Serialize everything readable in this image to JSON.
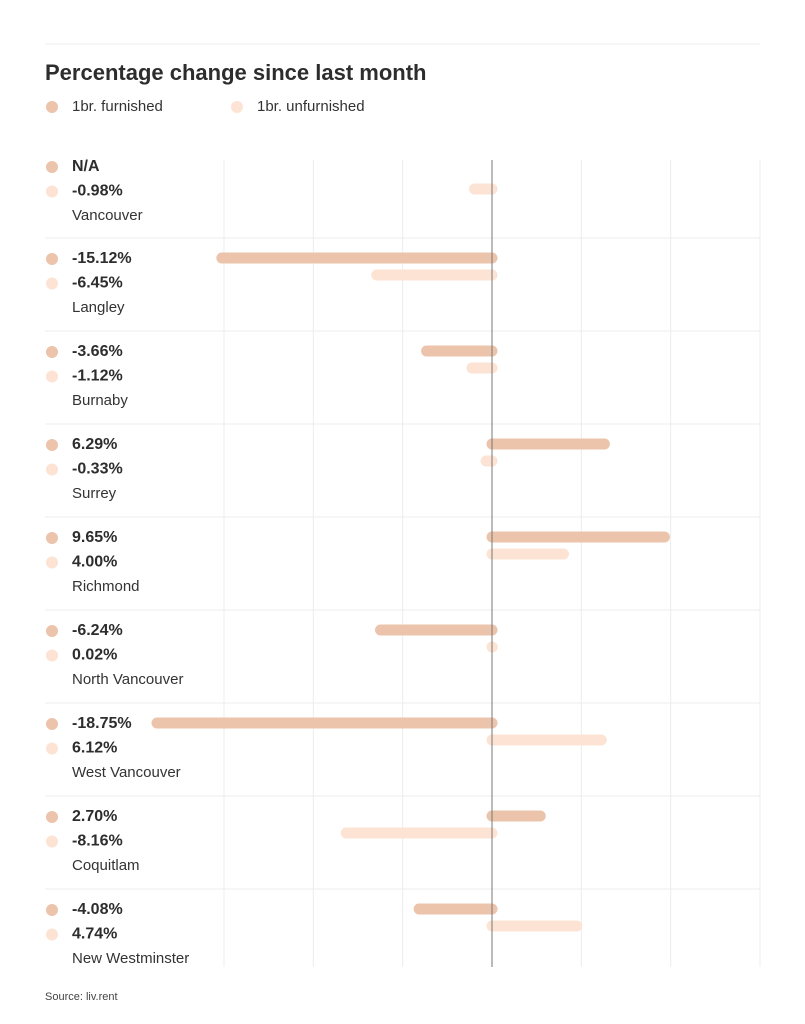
{
  "chart_data": {
    "type": "bar",
    "title": "Percentage change since last month",
    "source": "Source: liv.rent",
    "categories": [
      "Vancouver",
      "Langley",
      "Burnaby",
      "Surrey",
      "Richmond",
      "North Vancouver",
      "West Vancouver",
      "Coquitlam",
      "New Westminster"
    ],
    "series": [
      {
        "name": "1br. furnished",
        "color": "#ecc3ab",
        "values": [
          null,
          -15.12,
          -3.66,
          6.29,
          9.65,
          -6.24,
          -18.75,
          2.7,
          -4.08
        ],
        "value_labels": [
          "N/A",
          "-15.12%",
          "-3.66%",
          "6.29%",
          "9.65%",
          "-6.24%",
          "-18.75%",
          "2.70%",
          "-4.08%"
        ]
      },
      {
        "name": "1br. unfurnished",
        "color": "#fde3d3",
        "values": [
          -0.98,
          -6.45,
          -1.12,
          -0.33,
          4.0,
          0.02,
          6.12,
          -8.16,
          4.74
        ],
        "value_labels": [
          "-0.98%",
          "-6.45%",
          "-1.12%",
          "-0.33%",
          "4.00%",
          "0.02%",
          "6.12%",
          "-8.16%",
          "4.74%"
        ]
      }
    ],
    "xlim": [
      -15,
      15
    ],
    "xticks": [
      -15,
      -10,
      -5,
      0,
      5,
      10,
      15
    ],
    "grid": true
  }
}
